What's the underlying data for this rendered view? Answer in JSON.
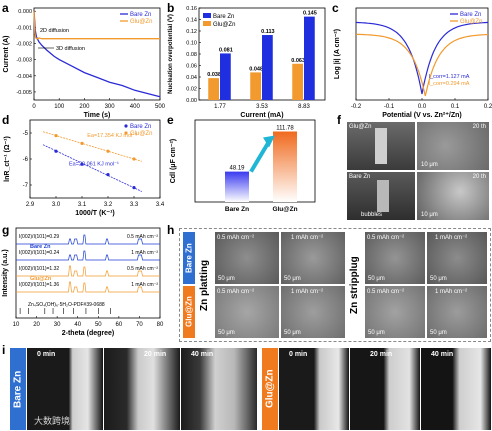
{
  "panels": {
    "a": "a",
    "b": "b",
    "c": "c",
    "d": "d",
    "e": "e",
    "f": "f",
    "g": "g",
    "h": "h",
    "i": "i"
  },
  "chart_data": [
    {
      "id": "a",
      "type": "line",
      "xlabel": "Time (s)",
      "ylabel": "Current (A)",
      "xlim": [
        0,
        500
      ],
      "ylim": [
        -0.0055,
        0.0002
      ],
      "xticks": [
        0,
        100,
        200,
        300,
        400,
        500
      ],
      "yticks": [
        0,
        -0.001,
        -0.002,
        -0.003,
        -0.004,
        -0.005
      ],
      "ytick_labels": [
        "0.000",
        "-0.001",
        "-0.002",
        "-0.003",
        "-0.004",
        "-0.005"
      ],
      "series": [
        {
          "name": "Bare Zn",
          "color": "#2b2bd6",
          "x": [
            0,
            5,
            10,
            20,
            30,
            50,
            80,
            100,
            150,
            200,
            250,
            300,
            350,
            400,
            450,
            500
          ],
          "y": [
            0,
            -0.0012,
            -0.0016,
            -0.0019,
            -0.0021,
            -0.0024,
            -0.0028,
            -0.003,
            -0.0034,
            -0.0038,
            -0.0041,
            -0.0044,
            -0.0046,
            -0.0049,
            -0.0051,
            -0.0053
          ]
        },
        {
          "name": "Glu@Zn",
          "color": "#f29a2e",
          "x": [
            0,
            3,
            6,
            10,
            15,
            20,
            30,
            50,
            100,
            200,
            300,
            400,
            500
          ],
          "y": [
            0,
            -0.0013,
            -0.0016,
            -0.0017,
            -0.0017,
            -0.00165,
            -0.0017,
            -0.0017,
            -0.0017,
            -0.0017,
            -0.0017,
            -0.0017,
            -0.0017
          ]
        }
      ],
      "annotations": [
        "2D diffusion",
        "3D diffusion"
      ],
      "legend": "top-right"
    },
    {
      "id": "b",
      "type": "bar",
      "xlabel": "Current (mA)",
      "ylabel": "Nucleation overpotential (V)",
      "categories": [
        "1.77",
        "3.53",
        "8.83"
      ],
      "ylim": [
        0,
        0.16
      ],
      "yticks": [
        0,
        0.02,
        0.04,
        0.06,
        0.08,
        0.1,
        0.12,
        0.14,
        0.16
      ],
      "ytick_labels": [
        "0.00",
        "0.02",
        "0.04",
        "0.06",
        "0.08",
        "0.10",
        "0.12",
        "0.14",
        "0.16"
      ],
      "series": [
        {
          "name": "Glu@Zn",
          "color": "#f29a2e",
          "values": [
            0.038,
            0.048,
            0.063
          ],
          "labels": [
            "0.038",
            "0.048",
            "0.063"
          ]
        },
        {
          "name": "Bare Zn",
          "color": "#1f2fe0",
          "values": [
            0.081,
            0.113,
            0.145
          ],
          "labels": [
            "0.081",
            "0.113",
            "0.145"
          ]
        }
      ],
      "legend": "top-left"
    },
    {
      "id": "c",
      "type": "line",
      "xlabel": "Potential (V vs. Zn²⁺/Zn)",
      "ylabel": "Log |i| (A cm⁻²)",
      "xlim": [
        -0.2,
        0.2
      ],
      "xticks": [
        -0.2,
        -0.1,
        0,
        0.1,
        0.2
      ],
      "xtick_labels": [
        "-0.2",
        "-0.1",
        "0.0",
        "0.1",
        "0.2"
      ],
      "series": [
        {
          "name": "Bare Zn",
          "color": "#2b2bd6"
        },
        {
          "name": "Glu@Zn",
          "color": "#f29a2e"
        }
      ],
      "annotations": [
        "I_corr=1.127 mA",
        "I_corr=0.294 mA"
      ],
      "legend": "top-right"
    },
    {
      "id": "d",
      "type": "scatter",
      "xlabel": "1000/T (K⁻¹)",
      "ylabel": "lnR_ct⁻¹ (Ω⁻¹)",
      "xlim": [
        2.9,
        3.4
      ],
      "ylim": [
        -7.5,
        -4.5
      ],
      "xticks": [
        2.9,
        3.0,
        3.1,
        3.2,
        3.3,
        3.4
      ],
      "yticks": [
        -7,
        -6,
        -5
      ],
      "series": [
        {
          "name": "Bare Zn",
          "color": "#2b2bd6",
          "x": [
            3.0,
            3.1,
            3.2,
            3.3
          ],
          "y": [
            -5.7,
            -6.2,
            -6.6,
            -7.1
          ]
        },
        {
          "name": "Glu@Zn",
          "color": "#f29a2e",
          "x": [
            3.0,
            3.1,
            3.2,
            3.3
          ],
          "y": [
            -5.1,
            -5.4,
            -5.7,
            -6.0
          ]
        }
      ],
      "annotations": [
        "Ea=17.354 KJ mol⁻¹",
        "Ea=20.061 KJ mol⁻¹"
      ],
      "legend": "top-right"
    },
    {
      "id": "e",
      "type": "bar",
      "ylabel": "Cdl (μF cm⁻²)",
      "categories": [
        "Bare Zn",
        "Glu@Zn"
      ],
      "values": [
        48.19,
        111.78
      ],
      "labels": [
        "48.19",
        "111.78"
      ]
    },
    {
      "id": "g",
      "type": "line",
      "xlabel": "2-theta (degree)",
      "ylabel": "Intensity (a.u.)",
      "xlim": [
        10,
        80
      ],
      "xticks": [
        10,
        20,
        30,
        40,
        50,
        60,
        70,
        80
      ],
      "series": [
        {
          "name": "Bare Zn",
          "color": "#1f3fd0",
          "ratio_text": "I(002)/I(101)=0.29",
          "capacity": "0.5 mAh cm⁻²"
        },
        {
          "name": "",
          "color": "#1f3fd0",
          "ratio_text": "I(002)/I(101)=0.24",
          "capacity": "1 mAh cm⁻²"
        },
        {
          "name": "Glu@Zn",
          "color": "#f29a2e",
          "ratio_text": "I(002)/I(101)=1.32",
          "capacity": "0.5 mAh cm⁻²"
        },
        {
          "name": "",
          "color": "#f29a2e",
          "ratio_text": "I(002)/I(101)=1.36",
          "capacity": "1 mAh cm⁻²"
        }
      ],
      "reference": "Zn₄SO₄(OH)₆·5H₂O-PDF#39-0688"
    }
  ],
  "panel_f": {
    "tl": "Glu@Zn",
    "tr": "20 th",
    "trs": "10 μm",
    "bl": "Bare Zn",
    "blb": "bubbles",
    "brtop": "20 th",
    "brs": "10 μm"
  },
  "panel_h": {
    "bare": "Bare Zn",
    "glu": "Glu@Zn",
    "plating": "Zn platting",
    "stripping": "Zn stripplug",
    "c05": "0.5 mAh cm⁻²",
    "c1": "1 mAh cm⁻²",
    "scale": "50 μm"
  },
  "panel_i": {
    "bare": "Bare Zn",
    "glu": "Glu@Zn",
    "t0": "0 min",
    "t20": "20 min",
    "t40": "40 min"
  },
  "watermark": "大数跨境"
}
